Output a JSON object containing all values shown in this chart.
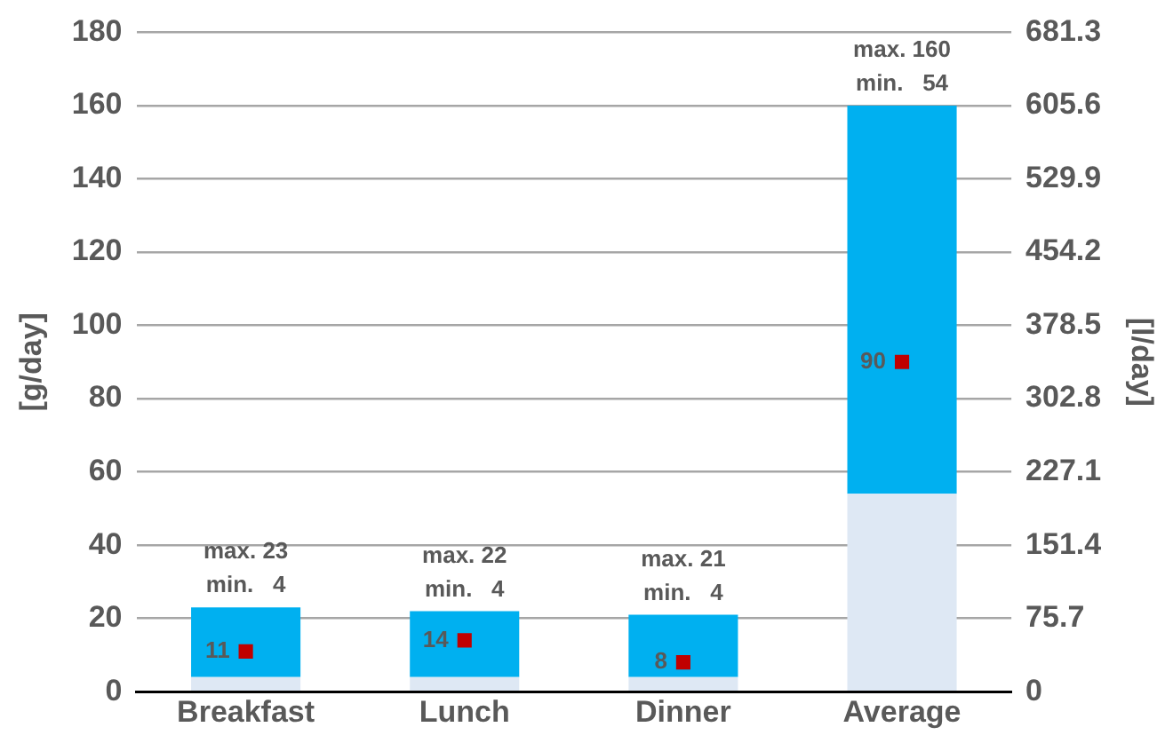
{
  "chart_data": {
    "type": "bar",
    "stacked": true,
    "categories": [
      "Breakfast",
      "Lunch",
      "Dinner",
      "Average"
    ],
    "series": [
      {
        "color": "#dee8f4",
        "values": [
          4,
          4,
          4,
          54
        ]
      },
      {
        "color": "#00b0f0",
        "values": [
          19,
          18,
          17,
          106
        ]
      },
      {
        "type": "scatter",
        "color": "#c00000",
        "x": [
          "Breakfast",
          "Lunch",
          "Dinner",
          "Average"
        ],
        "values": [
          11,
          14,
          8,
          90
        ],
        "value_labels": [
          "11",
          "14",
          "8",
          "90"
        ]
      }
    ],
    "ylabel": "[g/day]",
    "y2label": "[l/day]",
    "ylim": [
      0,
      180
    ],
    "yticks": [
      0,
      20,
      40,
      60,
      80,
      100,
      120,
      140,
      160,
      180
    ],
    "y2lim": [
      0,
      681.3
    ],
    "y2ticks": [
      0,
      75.7,
      151.4,
      227.1,
      302.8,
      378.5,
      454.2,
      529.9,
      605.6,
      681.3
    ],
    "grid": "y",
    "legend": false,
    "annotations": [
      {
        "text": "max. 23",
        "x": "Breakfast",
        "y": 23
      },
      {
        "text": "min.   4",
        "x": "Breakfast",
        "y": 23
      },
      {
        "text": "max. 22",
        "x": "Lunch",
        "y": 22
      },
      {
        "text": "min.   4",
        "x": "Lunch",
        "y": 22
      },
      {
        "text": "max. 21",
        "x": "Dinner",
        "y": 21
      },
      {
        "text": "min.   4",
        "x": "Dinner",
        "y": 21
      },
      {
        "text": "max. 160",
        "x": "Average",
        "y": 160
      },
      {
        "text": "min.   54",
        "x": "Average",
        "y": 160
      }
    ]
  }
}
